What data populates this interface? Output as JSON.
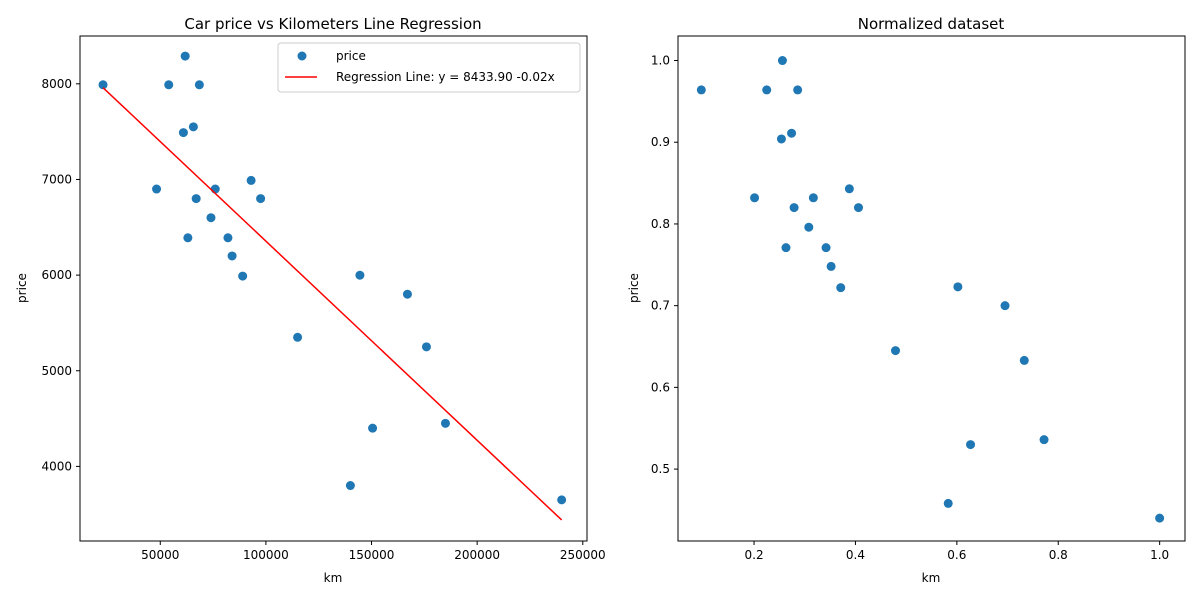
{
  "chart_data": [
    {
      "type": "scatter",
      "title": "Car price vs Kilometers Line Regression",
      "xlabel": "km",
      "ylabel": "price",
      "xlim": [
        12000,
        252000
      ],
      "ylim": [
        3220,
        8500
      ],
      "x_ticks": [
        50000,
        100000,
        150000,
        200000,
        250000
      ],
      "x_tick_labels": [
        "50000",
        "100000",
        "150000",
        "200000",
        "250000"
      ],
      "y_ticks": [
        4000,
        5000,
        6000,
        7000,
        8000
      ],
      "y_tick_labels": [
        "4000",
        "5000",
        "6000",
        "7000",
        "8000"
      ],
      "grid": false,
      "legend": {
        "position": "top-right",
        "entries": [
          "price",
          "Regression Line: y = 8433.90 -0.02x"
        ]
      },
      "series": [
        {
          "name": "price",
          "kind": "scatter",
          "color": "#1f77b4",
          "points": [
            [
              22899,
              7990
            ],
            [
              48235,
              6900
            ],
            [
              54000,
              7990
            ],
            [
              60949,
              7490
            ],
            [
              61789,
              8290
            ],
            [
              63060,
              6390
            ],
            [
              65674,
              7550
            ],
            [
              67000,
              6800
            ],
            [
              68500,
              7990
            ],
            [
              74000,
              6600
            ],
            [
              76025,
              6900
            ],
            [
              82029,
              6390
            ],
            [
              84000,
              6200
            ],
            [
              89000,
              5990
            ],
            [
              93000,
              6990
            ],
            [
              97500,
              6800
            ],
            [
              115000,
              5350
            ],
            [
              140000,
              3800
            ],
            [
              144500,
              5999
            ],
            [
              150500,
              4400
            ],
            [
              167000,
              5800
            ],
            [
              176000,
              5250
            ],
            [
              185000,
              4450
            ],
            [
              240000,
              3650
            ]
          ]
        },
        {
          "name": "Regression Line: y = 8433.90 -0.02x",
          "kind": "line",
          "color": "#ff0000",
          "points": [
            [
              22899,
              7960
            ],
            [
              240000,
              3440
            ]
          ]
        }
      ]
    },
    {
      "type": "scatter",
      "title": "Normalized dataset",
      "xlabel": "km",
      "ylabel": "price",
      "xlim": [
        0.05,
        1.05
      ],
      "ylim": [
        0.412,
        1.03
      ],
      "x_ticks": [
        0.2,
        0.4,
        0.6,
        0.8,
        1.0
      ],
      "x_tick_labels": [
        "0.2",
        "0.4",
        "0.6",
        "0.8",
        "1.0"
      ],
      "y_ticks": [
        0.5,
        0.6,
        0.7,
        0.8,
        0.9,
        1.0
      ],
      "y_tick_labels": [
        "0.5",
        "0.6",
        "0.7",
        "0.8",
        "0.9",
        "1.0"
      ],
      "grid": false,
      "series": [
        {
          "kind": "scatter",
          "color": "#1f77b4",
          "points": [
            [
              0.096,
              0.964
            ],
            [
              0.201,
              0.832
            ],
            [
              0.225,
              0.964
            ],
            [
              0.254,
              0.904
            ],
            [
              0.256,
              1.0
            ],
            [
              0.263,
              0.771
            ],
            [
              0.274,
              0.911
            ],
            [
              0.279,
              0.82
            ],
            [
              0.286,
              0.964
            ],
            [
              0.308,
              0.796
            ],
            [
              0.317,
              0.832
            ],
            [
              0.342,
              0.771
            ],
            [
              0.352,
              0.748
            ],
            [
              0.371,
              0.722
            ],
            [
              0.388,
              0.843
            ],
            [
              0.406,
              0.82
            ],
            [
              0.479,
              0.645
            ],
            [
              0.583,
              0.458
            ],
            [
              0.602,
              0.723
            ],
            [
              0.627,
              0.53
            ],
            [
              0.695,
              0.7
            ],
            [
              0.733,
              0.633
            ],
            [
              0.772,
              0.536
            ],
            [
              1.0,
              0.44
            ]
          ]
        }
      ]
    }
  ]
}
